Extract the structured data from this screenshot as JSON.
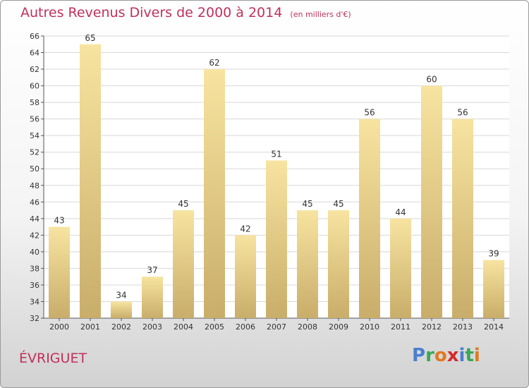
{
  "header": {
    "title": "Autres Revenus Divers de 2000 à 2014",
    "subtitle": "(en milliers d'€)"
  },
  "footer": {
    "place": "ÉVRIGUET",
    "logo_text": "Proxiti"
  },
  "colors": {
    "title": "#c0305a",
    "bar_top": "#f7e4a0",
    "bar_bottom": "#c9ad6a",
    "grid": "#d8d8d8",
    "logo_letters": [
      "#4a7fd0",
      "#3aa655",
      "#e07a1f",
      "#d42a2a",
      "#4a7fd0",
      "#3aa655",
      "#e07a1f"
    ]
  },
  "chart_data": {
    "type": "bar",
    "title": "Autres Revenus Divers de 2000 à 2014",
    "subtitle": "(en milliers d'€)",
    "categories": [
      "2000",
      "2001",
      "2002",
      "2003",
      "2004",
      "2005",
      "2006",
      "2007",
      "2008",
      "2009",
      "2010",
      "2011",
      "2012",
      "2013",
      "2014"
    ],
    "values": [
      43,
      65,
      34,
      37,
      45,
      62,
      42,
      51,
      45,
      45,
      56,
      44,
      60,
      56,
      39
    ],
    "ylim": [
      32,
      66
    ],
    "yticks": [
      32,
      34,
      36,
      38,
      40,
      42,
      44,
      46,
      48,
      50,
      52,
      54,
      56,
      58,
      60,
      62,
      64,
      66
    ],
    "grid": true,
    "legend": "none"
  }
}
